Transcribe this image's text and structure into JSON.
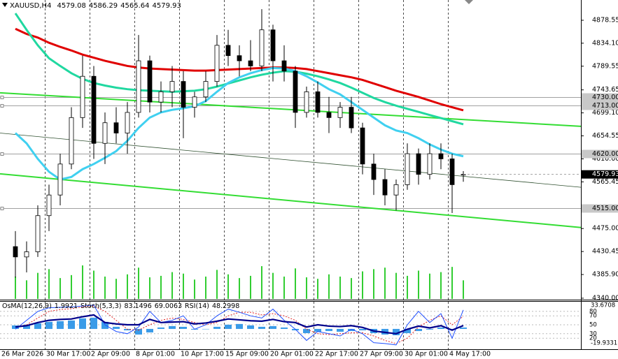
{
  "chart_data": {
    "type": "candlestick",
    "symbol": "XAUUSD,H4",
    "categories": [
      "26 Mar 2026",
      null,
      null,
      null,
      "30 Mar 17:00",
      null,
      null,
      null,
      "2 Apr 09:00",
      null,
      null,
      null,
      "8 Apr 01:00",
      null,
      null,
      null,
      "10 Apr 17:00",
      null,
      null,
      null,
      "15 Apr 09:00",
      null,
      null,
      null,
      "20 Apr 01:00",
      null,
      null,
      null,
      "22 Apr 17:00",
      null,
      null,
      null,
      "27 Apr 09:00",
      null,
      null,
      null,
      "30 Apr 01:00",
      null,
      null,
      null,
      "4 May 17:00"
    ],
    "ohlc": [
      [
        4440,
        4470,
        4380,
        4420
      ],
      [
        4420,
        4450,
        4390,
        4430
      ],
      [
        4430,
        4520,
        4420,
        4500
      ],
      [
        4500,
        4560,
        4470,
        4540
      ],
      [
        4540,
        4620,
        4520,
        4600
      ],
      [
        4600,
        4710,
        4590,
        4690
      ],
      [
        4690,
        4810,
        4670,
        4770
      ],
      [
        4770,
        4790,
        4610,
        4640
      ],
      [
        4640,
        4700,
        4600,
        4680
      ],
      [
        4680,
        4710,
        4640,
        4660
      ],
      [
        4660,
        4720,
        4620,
        4700
      ],
      [
        4700,
        4850,
        4690,
        4800
      ],
      [
        4800,
        4810,
        4700,
        4720
      ],
      [
        4720,
        4760,
        4700,
        4740
      ],
      [
        4740,
        4790,
        4710,
        4760
      ],
      [
        4760,
        4780,
        4650,
        4710
      ],
      [
        4710,
        4740,
        4690,
        4730
      ],
      [
        4730,
        4780,
        4720,
        4760
      ],
      [
        4760,
        4850,
        4750,
        4830
      ],
      [
        4830,
        4860,
        4790,
        4810
      ],
      [
        4810,
        4830,
        4770,
        4800
      ],
      [
        4800,
        4840,
        4780,
        4790
      ],
      [
        4790,
        4900,
        4780,
        4860
      ],
      [
        4860,
        4870,
        4760,
        4800
      ],
      [
        4800,
        4830,
        4760,
        4780
      ],
      [
        4780,
        4790,
        4670,
        4700
      ],
      [
        4700,
        4750,
        4690,
        4740
      ],
      [
        4740,
        4760,
        4690,
        4700
      ],
      [
        4700,
        4730,
        4660,
        4690
      ],
      [
        4690,
        4720,
        4670,
        4710
      ],
      [
        4710,
        4730,
        4660,
        4670
      ],
      [
        4670,
        4680,
        4580,
        4600
      ],
      [
        4600,
        4620,
        4540,
        4570
      ],
      [
        4570,
        4590,
        4520,
        4540
      ],
      [
        4540,
        4570,
        4510,
        4560
      ],
      [
        4560,
        4640,
        4550,
        4620
      ],
      [
        4620,
        4630,
        4560,
        4580
      ],
      [
        4580,
        4640,
        4570,
        4620
      ],
      [
        4620,
        4640,
        4590,
        4610
      ],
      [
        4610,
        4620,
        4505,
        4560
      ],
      [
        4579.08,
        4586.29,
        4565.64,
        4579.93
      ]
    ],
    "up_color": "#ffffff",
    "down_color": "#000000",
    "volumes": [
      30,
      25,
      35,
      40,
      28,
      32,
      45,
      38,
      30,
      27,
      33,
      42,
      29,
      31,
      36,
      34,
      26,
      30,
      39,
      33,
      28,
      31,
      44,
      35,
      30,
      41,
      29,
      27,
      33,
      30,
      28,
      37,
      40,
      42,
      35,
      31,
      38,
      34,
      36,
      43,
      25
    ],
    "volume_color": "#32cd32",
    "ylim": [
      4338.6,
      4917.8
    ],
    "yticks": [
      4878.55,
      {
        "value": 4834.1,
        "label": "4834.10"
      },
      4789.55,
      4743.65,
      {
        "value": 4699.1,
        "label": "4699.10"
      },
      4654.55,
      {
        "value": 4610,
        "label": "4610.00"
      },
      4565.45,
      {
        "value": 4475,
        "label": "4475.00"
      },
      4430.45,
      {
        "value": 4385.9,
        "label": "4385.90"
      },
      {
        "value": 4340,
        "label": "4340.00"
      }
    ],
    "levels": [
      {
        "value": 4730,
        "label": "4730.00"
      },
      {
        "value": 4713,
        "label": "4713.00"
      },
      {
        "value": 4620,
        "label": "4620.00"
      },
      {
        "value": 4515,
        "label": "4515.00"
      }
    ],
    "moving_averages": [
      {
        "color": "#e00000",
        "values": [
          4862,
          4852,
          4845,
          4835,
          4827,
          4820,
          4812,
          4806,
          4800,
          4795,
          4790,
          4787,
          4785,
          4784,
          4783,
          4782,
          4781,
          4781,
          4782,
          4783,
          4784,
          4785,
          4786,
          4787,
          4787,
          4786,
          4784,
          4780,
          4776,
          4772,
          4768,
          4763,
          4756,
          4749,
          4742,
          4736,
          4730,
          4723,
          4716,
          4710,
          4704
        ]
      },
      {
        "color": "#20d8a0",
        "values": [
          4892,
          4860,
          4830,
          4805,
          4790,
          4776,
          4765,
          4757,
          4752,
          4748,
          4745,
          4743,
          4742,
          4741,
          4740,
          4741,
          4742,
          4745,
          4750,
          4756,
          4762,
          4768,
          4773,
          4777,
          4780,
          4779,
          4775,
          4770,
          4764,
          4757,
          4748,
          4738,
          4728,
          4720,
          4713,
          4707,
          4701,
          4695,
          4689,
          4683,
          4677
        ]
      },
      {
        "color": "#40d0f0",
        "values": [
          4660,
          4640,
          4610,
          4585,
          4570,
          4575,
          4590,
          4600,
          4612,
          4625,
          4645,
          4670,
          4690,
          4700,
          4705,
          4708,
          4712,
          4722,
          4740,
          4757,
          4768,
          4776,
          4782,
          4786,
          4785,
          4780,
          4770,
          4758,
          4745,
          4735,
          4720,
          4705,
          4690,
          4675,
          4665,
          4660,
          4650,
          4638,
          4628,
          4620,
          4615
        ]
      }
    ],
    "trendlines": [
      {
        "color": "#33dd33",
        "values": [
          4738,
          4673
        ]
      },
      {
        "color": "#2f4f2f",
        "values": [
          4660,
          4555
        ]
      },
      {
        "color": "#33dd33",
        "values": [
          4581,
          4477
        ]
      }
    ],
    "indicators": {
      "osma_name": "OsMA(12,26,9)",
      "osma_value": 1.9921,
      "stoch_name": "Stoch(5,3,3)",
      "stoch_k": 83.1496,
      "stoch_d": 69.0063,
      "rsi_name": "RSI(14)",
      "rsi_value": 48.2998,
      "ylim": [
        0,
        100
      ],
      "yticks": [
        80,
        70,
        50,
        30,
        20
      ],
      "y2lim": [
        -19.9331,
        33.6708
      ],
      "y2ticks": [
        33.6708,
        -19.9331
      ],
      "osma": {
        "color": "#3a9be8",
        "values": [
          5,
          6,
          8,
          10,
          11,
          12,
          15,
          16,
          10,
          3,
          -2,
          -8,
          -5,
          2,
          4,
          3,
          -1,
          0,
          3,
          6,
          7,
          5,
          3,
          4,
          2,
          -2,
          -6,
          -4,
          -3,
          -4,
          -3,
          -2,
          -6,
          -8,
          -9,
          -6,
          -3,
          -1,
          2,
          -1,
          1.99
        ]
      },
      "stoch_k_line": {
        "color": "#2050ff",
        "values": [
          40,
          60,
          80,
          88,
          89,
          90,
          92,
          94,
          50,
          35,
          30,
          45,
          80,
          55,
          60,
          70,
          40,
          50,
          70,
          85,
          78,
          70,
          65,
          85,
          60,
          40,
          15,
          35,
          30,
          25,
          40,
          30,
          10,
          8,
          5,
          50,
          80,
          55,
          75,
          20,
          83.15
        ]
      },
      "stoch_d_line": {
        "color": "#e02020",
        "values": [
          45,
          50,
          65,
          80,
          84,
          86,
          90,
          92,
          80,
          60,
          40,
          38,
          50,
          60,
          65,
          62,
          55,
          50,
          55,
          70,
          78,
          78,
          72,
          75,
          70,
          60,
          40,
          30,
          28,
          30,
          32,
          32,
          25,
          15,
          8,
          20,
          45,
          60,
          70,
          50,
          69.01
        ]
      },
      "rsi_line": {
        "color": "#00008b",
        "values": [
          45,
          48,
          55,
          60,
          62,
          63,
          68,
          72,
          55,
          52,
          50,
          50,
          62,
          55,
          56,
          57,
          52,
          54,
          58,
          63,
          61,
          59,
          58,
          62,
          57,
          55,
          45,
          50,
          47,
          46,
          48,
          44,
          36,
          33,
          30,
          40,
          47,
          43,
          48,
          38,
          48.3
        ]
      }
    }
  }
}
